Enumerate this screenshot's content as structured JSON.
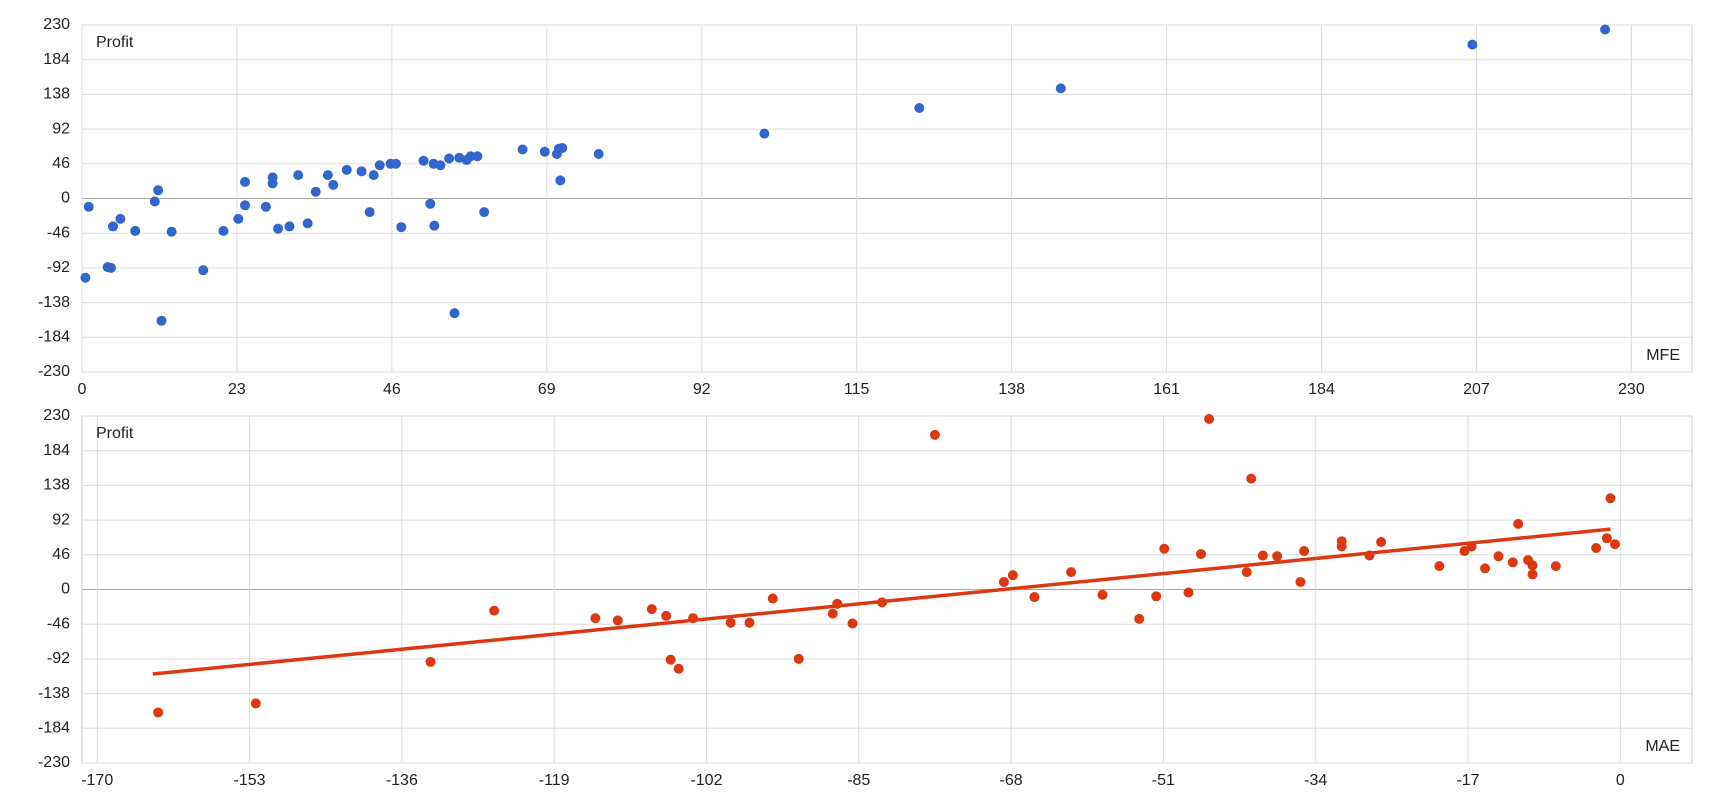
{
  "chart_data": [
    {
      "type": "scatter",
      "y_label": "Profit",
      "x_label": "MFE",
      "color": "#3366cc",
      "grid": true,
      "xlim": [
        0,
        239
      ],
      "ylim": [
        -230,
        230
      ],
      "xticks": [
        0,
        23,
        46,
        69,
        92,
        115,
        138,
        161,
        184,
        207,
        230
      ],
      "yticks": [
        230,
        184,
        138,
        92,
        46,
        0,
        -46,
        -92,
        -138,
        -184,
        -230
      ],
      "x": [
        0.5,
        1,
        3.8,
        4.3,
        4.6,
        5.7,
        7.9,
        10.8,
        11.3,
        11.8,
        13.3,
        18,
        21,
        23.2,
        24.2,
        24.2,
        27.3,
        28.3,
        28.3,
        29.1,
        30.8,
        32.1,
        33.5,
        34.7,
        36.5,
        37.3,
        39.3,
        41.5,
        42.7,
        43.3,
        44.2,
        45.8,
        46.6,
        47.4,
        50.7,
        51.7,
        52.2,
        52.3,
        53.2,
        54.5,
        55.3,
        56,
        57.1,
        57.7,
        58.7,
        59.7,
        65.4,
        68.7,
        70.5,
        70.8,
        71,
        71.3,
        76.7,
        101.3,
        124.3,
        145.3,
        206.4,
        226.1
      ],
      "values": [
        -105,
        -11,
        -91,
        -92,
        -37,
        -27,
        -43,
        -4,
        11,
        -162,
        -44,
        -95,
        -43,
        -27,
        22,
        -9,
        -11,
        28,
        20,
        -40,
        -37,
        31,
        -33,
        9,
        31,
        18,
        38,
        36,
        -18,
        31,
        44,
        46,
        46,
        -38,
        50,
        -7,
        46,
        -36,
        44,
        53,
        -152,
        54,
        51,
        56,
        56,
        -18,
        65,
        62,
        59,
        66,
        24,
        67,
        59,
        86,
        120,
        146,
        204,
        224
      ]
    },
    {
      "type": "scatter",
      "y_label": "Profit",
      "x_label": "MAE",
      "color": "#dc3912",
      "grid": true,
      "xlim": [
        -171.7,
        8
      ],
      "ylim": [
        -230,
        230
      ],
      "xticks": [
        -170,
        -153,
        -136,
        -119,
        -102,
        -85,
        -68,
        -51,
        -34,
        -17,
        0
      ],
      "yticks": [
        230,
        184,
        138,
        92,
        46,
        0,
        -46,
        -92,
        -138,
        -184,
        -230
      ],
      "x": [
        -163.2,
        -152.3,
        -132.8,
        -125.7,
        -114.4,
        -111.9,
        -108.1,
        -106.5,
        -106,
        -105.1,
        -103.5,
        -99.3,
        -97.2,
        -94.6,
        -91.7,
        -87.9,
        -87.4,
        -85.7,
        -82.4,
        -76.5,
        -68.8,
        -67.8,
        -65.4,
        -61.3,
        -57.8,
        -53.7,
        -51.8,
        -50.9,
        -48.2,
        -46.8,
        -45.9,
        -41.7,
        -41.2,
        -39.9,
        -38.3,
        -35.7,
        -35.3,
        -31.1,
        -31.1,
        -28,
        -26.7,
        -20.2,
        -17.4,
        -16.6,
        -15.1,
        -13.6,
        -12,
        -11.4,
        -10.3,
        -9.8,
        -9.8,
        -7.2,
        -2.7,
        -1.5,
        -1.1,
        -0.6
      ],
      "values": [
        -163,
        -151,
        -96,
        -28,
        -38,
        -41,
        -26,
        -35,
        -93,
        -105,
        -38,
        -44,
        -44,
        -12,
        -92,
        -32,
        -19,
        -45,
        -17,
        205,
        10,
        19,
        -10,
        23,
        -7,
        -39,
        -9,
        54,
        -4,
        47,
        226,
        23,
        147,
        45,
        44,
        10,
        51,
        64,
        57,
        45,
        63,
        31,
        51,
        57,
        28,
        44,
        36,
        87,
        39,
        32,
        20,
        31,
        55,
        68,
        121,
        60
      ],
      "trendline": {
        "x": [
          -163.8,
          -1.1
        ],
        "values": [
          -112,
          80
        ]
      }
    }
  ]
}
